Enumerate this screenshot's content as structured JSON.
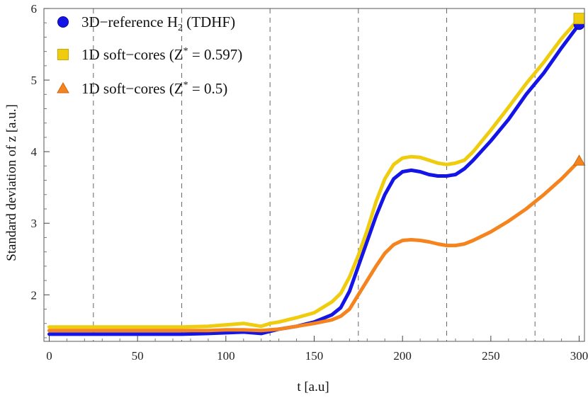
{
  "chart_data": {
    "type": "line",
    "title": "",
    "xlabel": "t  [a.u]",
    "ylabel": "Standard deviation  of  z  [a.u.]",
    "xlim": [
      -3,
      303
    ],
    "ylim": [
      1.35,
      6.0
    ],
    "x_ticks": [
      0,
      50,
      100,
      150,
      200,
      250,
      300
    ],
    "y_ticks": [
      2,
      3,
      4,
      5,
      6
    ],
    "y_tick_labels": [
      "2",
      "3",
      "4",
      "5",
      "6"
    ],
    "vlines": [
      25,
      75,
      125,
      175,
      225,
      275
    ],
    "legend_position": "top-left",
    "series": [
      {
        "name": "3D-reference H2 (TDHF)",
        "legend_main": "3D−reference H",
        "legend_sub": "2",
        "legend_tail": " (TDHF)",
        "color": "#1414e6",
        "marker": "circle",
        "x": [
          0,
          25,
          50,
          75,
          90,
          100,
          110,
          120,
          125,
          130,
          140,
          150,
          160,
          165,
          170,
          175,
          180,
          185,
          190,
          195,
          200,
          205,
          210,
          215,
          220,
          225,
          230,
          235,
          240,
          250,
          260,
          270,
          280,
          290,
          300
        ],
        "y": [
          1.45,
          1.45,
          1.45,
          1.45,
          1.46,
          1.47,
          1.48,
          1.46,
          1.49,
          1.52,
          1.56,
          1.62,
          1.72,
          1.82,
          2.05,
          2.4,
          2.75,
          3.1,
          3.4,
          3.62,
          3.72,
          3.74,
          3.72,
          3.68,
          3.66,
          3.66,
          3.68,
          3.76,
          3.88,
          4.15,
          4.45,
          4.8,
          5.1,
          5.45,
          5.78
        ]
      },
      {
        "name": "1D soft-cores (Z* = 0.597)",
        "legend_main": "1D soft−cores (Z",
        "legend_sup": "*",
        "legend_tail": " = 0.597)",
        "color": "#f0cc0f",
        "marker": "square",
        "x": [
          0,
          25,
          50,
          75,
          90,
          100,
          110,
          120,
          125,
          130,
          140,
          150,
          160,
          165,
          170,
          175,
          180,
          185,
          190,
          195,
          200,
          205,
          210,
          215,
          220,
          225,
          230,
          235,
          240,
          250,
          260,
          270,
          280,
          290,
          300
        ],
        "y": [
          1.55,
          1.55,
          1.55,
          1.55,
          1.56,
          1.58,
          1.6,
          1.56,
          1.6,
          1.62,
          1.68,
          1.75,
          1.9,
          2.02,
          2.25,
          2.55,
          2.9,
          3.3,
          3.62,
          3.82,
          3.91,
          3.93,
          3.92,
          3.88,
          3.84,
          3.82,
          3.84,
          3.88,
          4.0,
          4.3,
          4.62,
          4.95,
          5.25,
          5.58,
          5.86
        ]
      },
      {
        "name": "1D soft-cores (Z* = 0.5)",
        "legend_main": "1D soft−cores (Z",
        "legend_sup": "*",
        "legend_tail": " = 0.5)",
        "color": "#f5841e",
        "marker": "triangle",
        "x": [
          0,
          25,
          50,
          75,
          90,
          100,
          110,
          120,
          125,
          130,
          140,
          150,
          160,
          165,
          170,
          175,
          180,
          185,
          190,
          195,
          200,
          205,
          210,
          215,
          220,
          225,
          230,
          235,
          240,
          250,
          260,
          270,
          280,
          290,
          300
        ],
        "y": [
          1.5,
          1.5,
          1.5,
          1.5,
          1.5,
          1.51,
          1.51,
          1.5,
          1.51,
          1.52,
          1.56,
          1.6,
          1.65,
          1.7,
          1.8,
          2.0,
          2.2,
          2.4,
          2.58,
          2.7,
          2.76,
          2.77,
          2.76,
          2.74,
          2.71,
          2.69,
          2.69,
          2.71,
          2.76,
          2.88,
          3.03,
          3.2,
          3.4,
          3.62,
          3.87
        ]
      }
    ]
  }
}
